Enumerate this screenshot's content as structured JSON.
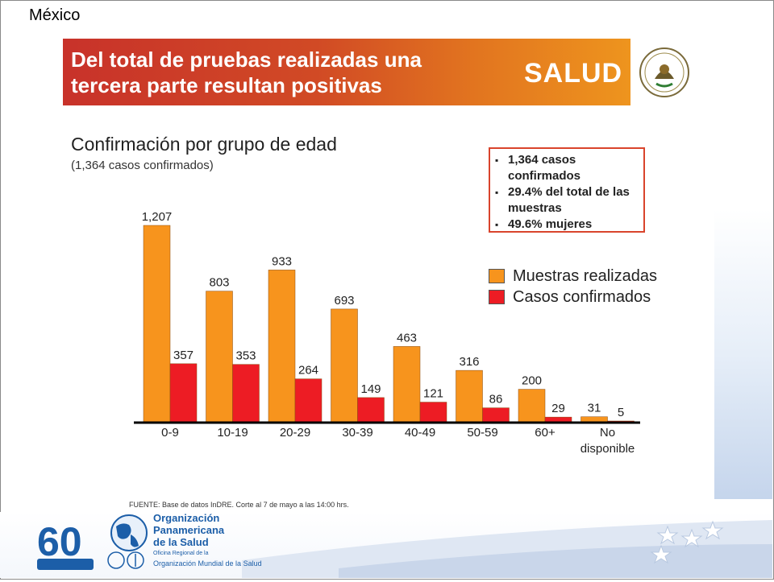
{
  "header": {
    "country": "México"
  },
  "banner": {
    "title_line1": "Del total de pruebas realizadas una",
    "title_line2": "tercera parte resultan positivas",
    "salud": "SALUD"
  },
  "subtitle": "Confirmación por grupo de edad",
  "subnote": "(1,364 casos confirmados)",
  "facts": [
    "1,364 casos confirmados",
    "29.4% del total de las muestras",
    "49.6% mujeres"
  ],
  "source": "FUENTE: Base de datos InDRE. Corte al 7 de mayo a las 14:00 hrs.",
  "logos": {
    "anniversary": "60",
    "ops_line1": "Organización",
    "ops_line2": "Panamericana",
    "ops_line3": "de la Salud",
    "oms_small": "Oficina Regional de la",
    "oms_name": "Organización Mundial de la Salud"
  },
  "colors": {
    "muestras": "#f7941d",
    "casos": "#ed1c24",
    "axis": "#000000"
  },
  "icons": [
    "mexican-seal-icon",
    "world-globe-icon",
    "who-emblem-icon",
    "star-icon"
  ],
  "chart_data": {
    "type": "bar",
    "categories": [
      "0-9",
      "10-19",
      "20-29",
      "30-39",
      "40-49",
      "50-59",
      "60+",
      "No disponible"
    ],
    "series": [
      {
        "name": "Muestras realizadas",
        "values": [
          1207,
          803,
          933,
          693,
          463,
          316,
          200,
          31
        ]
      },
      {
        "name": "Casos confirmados",
        "values": [
          357,
          353,
          264,
          149,
          121,
          86,
          29,
          5
        ]
      }
    ],
    "value_labels": {
      "Muestras realizadas": [
        "1,207",
        "803",
        "933",
        "693",
        "463",
        "316",
        "200",
        "31"
      ],
      "Casos confirmados": [
        "357",
        "353",
        "264",
        "149",
        "121",
        "86",
        "29",
        "5"
      ]
    },
    "ylim": [
      0,
      1207
    ],
    "legend": "right",
    "grid": false
  }
}
